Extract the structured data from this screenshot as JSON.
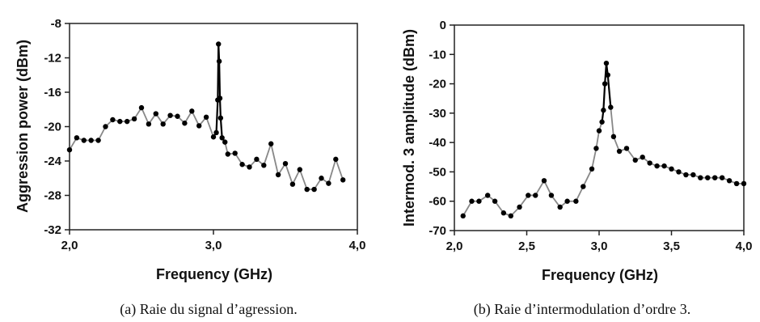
{
  "chart_data": [
    {
      "type": "line",
      "caption": "(a) Raie du signal d’agression.",
      "xlabel": "Frequency (GHz)",
      "ylabel": "Aggression power (dBm)",
      "xlim": [
        2.0,
        4.0
      ],
      "ylim": [
        -32,
        -8
      ],
      "xticks": [
        "2,0",
        "3,0",
        "4,0"
      ],
      "yticks": [
        "-8",
        "-12",
        "-16",
        "-20",
        "-24",
        "-28",
        "-32"
      ],
      "grid": false,
      "legend": "none",
      "line_color": "#888888",
      "marker_color": "#000000",
      "highlight_range": [
        2.98,
        3.09
      ],
      "x": [
        2.0,
        2.05,
        2.1,
        2.15,
        2.2,
        2.25,
        2.3,
        2.35,
        2.4,
        2.45,
        2.5,
        2.55,
        2.6,
        2.65,
        2.7,
        2.75,
        2.8,
        2.85,
        2.9,
        2.95,
        3.0,
        3.02,
        3.03,
        3.035,
        3.04,
        3.045,
        3.05,
        3.06,
        3.08,
        3.1,
        3.15,
        3.2,
        3.25,
        3.3,
        3.35,
        3.4,
        3.45,
        3.5,
        3.55,
        3.6,
        3.65,
        3.7,
        3.75,
        3.8,
        3.85,
        3.9
      ],
      "y": [
        -22.7,
        -21.3,
        -21.6,
        -21.6,
        -21.6,
        -20.0,
        -19.2,
        -19.4,
        -19.4,
        -19.1,
        -17.8,
        -19.7,
        -18.5,
        -19.7,
        -18.7,
        -18.8,
        -19.6,
        -18.2,
        -19.9,
        -18.9,
        -21.2,
        -20.7,
        -16.9,
        -10.4,
        -12.4,
        -16.7,
        -19.0,
        -21.3,
        -21.8,
        -23.2,
        -23.1,
        -24.4,
        -24.7,
        -23.8,
        -24.5,
        -22.0,
        -25.6,
        -24.3,
        -26.7,
        -25.0,
        -27.3,
        -27.3,
        -26.0,
        -26.6,
        -23.8,
        -26.2
      ]
    },
    {
      "type": "line",
      "caption": "(b) Raie d’intermodulation d’ordre 3.",
      "xlabel": "Frequency (GHz)",
      "ylabel": "Intermod. 3 amplitude (dBm)",
      "xlim": [
        2.0,
        4.0
      ],
      "ylim": [
        -70,
        0
      ],
      "xticks": [
        "2,0",
        "2,5",
        "3,0",
        "3,5",
        "4,0"
      ],
      "yticks": [
        "0",
        "-10",
        "-20",
        "-30",
        "-40",
        "-50",
        "-60",
        "-70"
      ],
      "grid": false,
      "legend": "none",
      "line_color": "#888888",
      "marker_color": "#000000",
      "highlight_range": [
        3.01,
        3.08
      ],
      "x": [
        2.06,
        2.12,
        2.17,
        2.23,
        2.28,
        2.34,
        2.39,
        2.45,
        2.51,
        2.56,
        2.62,
        2.67,
        2.73,
        2.78,
        2.84,
        2.89,
        2.95,
        2.98,
        3.0,
        3.02,
        3.03,
        3.04,
        3.05,
        3.06,
        3.08,
        3.1,
        3.14,
        3.19,
        3.25,
        3.3,
        3.35,
        3.4,
        3.45,
        3.5,
        3.55,
        3.6,
        3.65,
        3.7,
        3.75,
        3.8,
        3.85,
        3.9,
        3.95,
        4.0
      ],
      "y": [
        -65,
        -60,
        -60,
        -58,
        -60,
        -64,
        -65,
        -62,
        -58,
        -58,
        -53,
        -58,
        -62,
        -60,
        -60,
        -55,
        -49,
        -42,
        -36,
        -33,
        -29,
        -20,
        -13,
        -17,
        -28,
        -38,
        -43,
        -42,
        -46,
        -45,
        -47,
        -48,
        -48,
        -49,
        -50,
        -51,
        -51,
        -52,
        -52,
        -52,
        -52,
        -53,
        -54,
        -54
      ]
    }
  ]
}
